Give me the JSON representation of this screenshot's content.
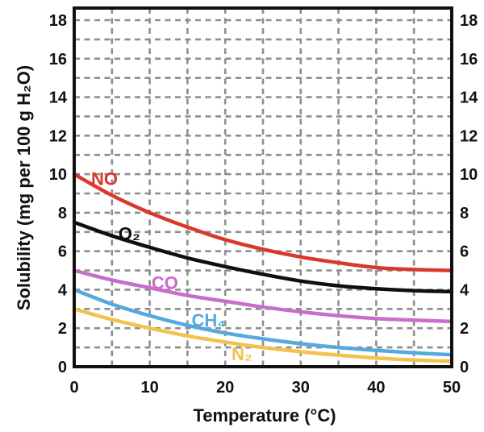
{
  "figure": {
    "background": "#ffffff",
    "frame_color": "#101010",
    "grid_color": "#8e8e8e",
    "text_color": "#111111"
  },
  "chart_data": {
    "type": "line",
    "title": "",
    "xlabel": "Temperature (°C)",
    "ylabel": "Solubility (mg per 100 g H₂O)",
    "xlim": [
      0,
      50
    ],
    "ylim": [
      0,
      18
    ],
    "x_ticks": [
      0,
      10,
      20,
      30,
      40,
      50
    ],
    "y_ticks": [
      0,
      2,
      4,
      6,
      8,
      10,
      12,
      14,
      16,
      18
    ],
    "y_tick_sides": [
      "left",
      "right"
    ],
    "grid": {
      "visible": true,
      "style": "dashed",
      "x_step": 5,
      "y_step": 1
    },
    "x": [
      0,
      5,
      10,
      15,
      20,
      25,
      30,
      35,
      40,
      45,
      50
    ],
    "series": [
      {
        "name": "NO",
        "label": "NO",
        "color": "#db382c",
        "values": [
          10.0,
          8.9,
          8.0,
          7.25,
          6.6,
          6.1,
          5.7,
          5.4,
          5.15,
          5.05,
          5.0
        ],
        "label_x": 4.0,
        "label_y": 9.75
      },
      {
        "name": "O2",
        "label": "O₂",
        "color": "#0f0f0f",
        "values": [
          7.5,
          6.8,
          6.2,
          5.65,
          5.2,
          4.8,
          4.45,
          4.2,
          4.05,
          3.95,
          3.9
        ],
        "label_x": 7.3,
        "label_y": 6.9
      },
      {
        "name": "CO",
        "label": "CO",
        "color": "#c76ec9",
        "values": [
          5.0,
          4.5,
          4.1,
          3.7,
          3.4,
          3.1,
          2.85,
          2.65,
          2.5,
          2.42,
          2.35
        ],
        "label_x": 12.0,
        "label_y": 4.35
      },
      {
        "name": "CH4",
        "label": "CH₄",
        "color": "#55a9de",
        "values": [
          4.0,
          3.25,
          2.65,
          2.15,
          1.75,
          1.45,
          1.2,
          1.0,
          0.85,
          0.72,
          0.62
        ],
        "label_x": 17.8,
        "label_y": 2.4
      },
      {
        "name": "N2",
        "label": "N₂",
        "color": "#f2c24e",
        "values": [
          3.0,
          2.45,
          2.0,
          1.6,
          1.28,
          1.0,
          0.78,
          0.6,
          0.45,
          0.35,
          0.28
        ],
        "label_x": 22.2,
        "label_y": 0.65
      }
    ]
  }
}
